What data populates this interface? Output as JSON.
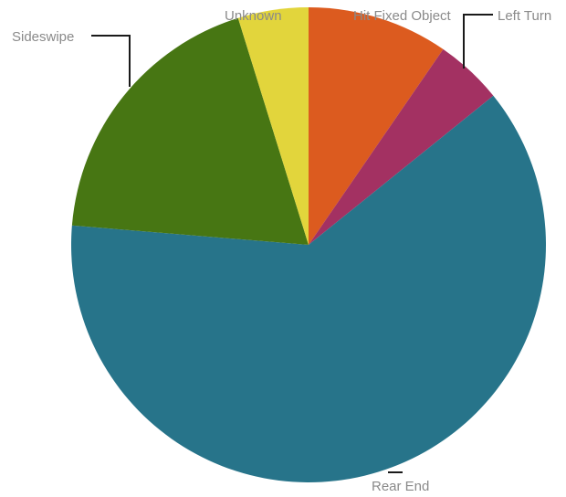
{
  "chart_data": {
    "type": "pie",
    "title": "",
    "slices": [
      {
        "label": "Hit Fixed Object",
        "value": 9.6,
        "color": "#dc5b1f"
      },
      {
        "label": "Left Turn",
        "value": 4.6,
        "color": "#a33162"
      },
      {
        "label": "Rear End",
        "value": 62.1,
        "color": "#27748a"
      },
      {
        "label": "Sideswipe",
        "value": 18.9,
        "color": "#477613"
      },
      {
        "label": "Unknown",
        "value": 4.8,
        "color": "#e2d53c"
      }
    ]
  }
}
